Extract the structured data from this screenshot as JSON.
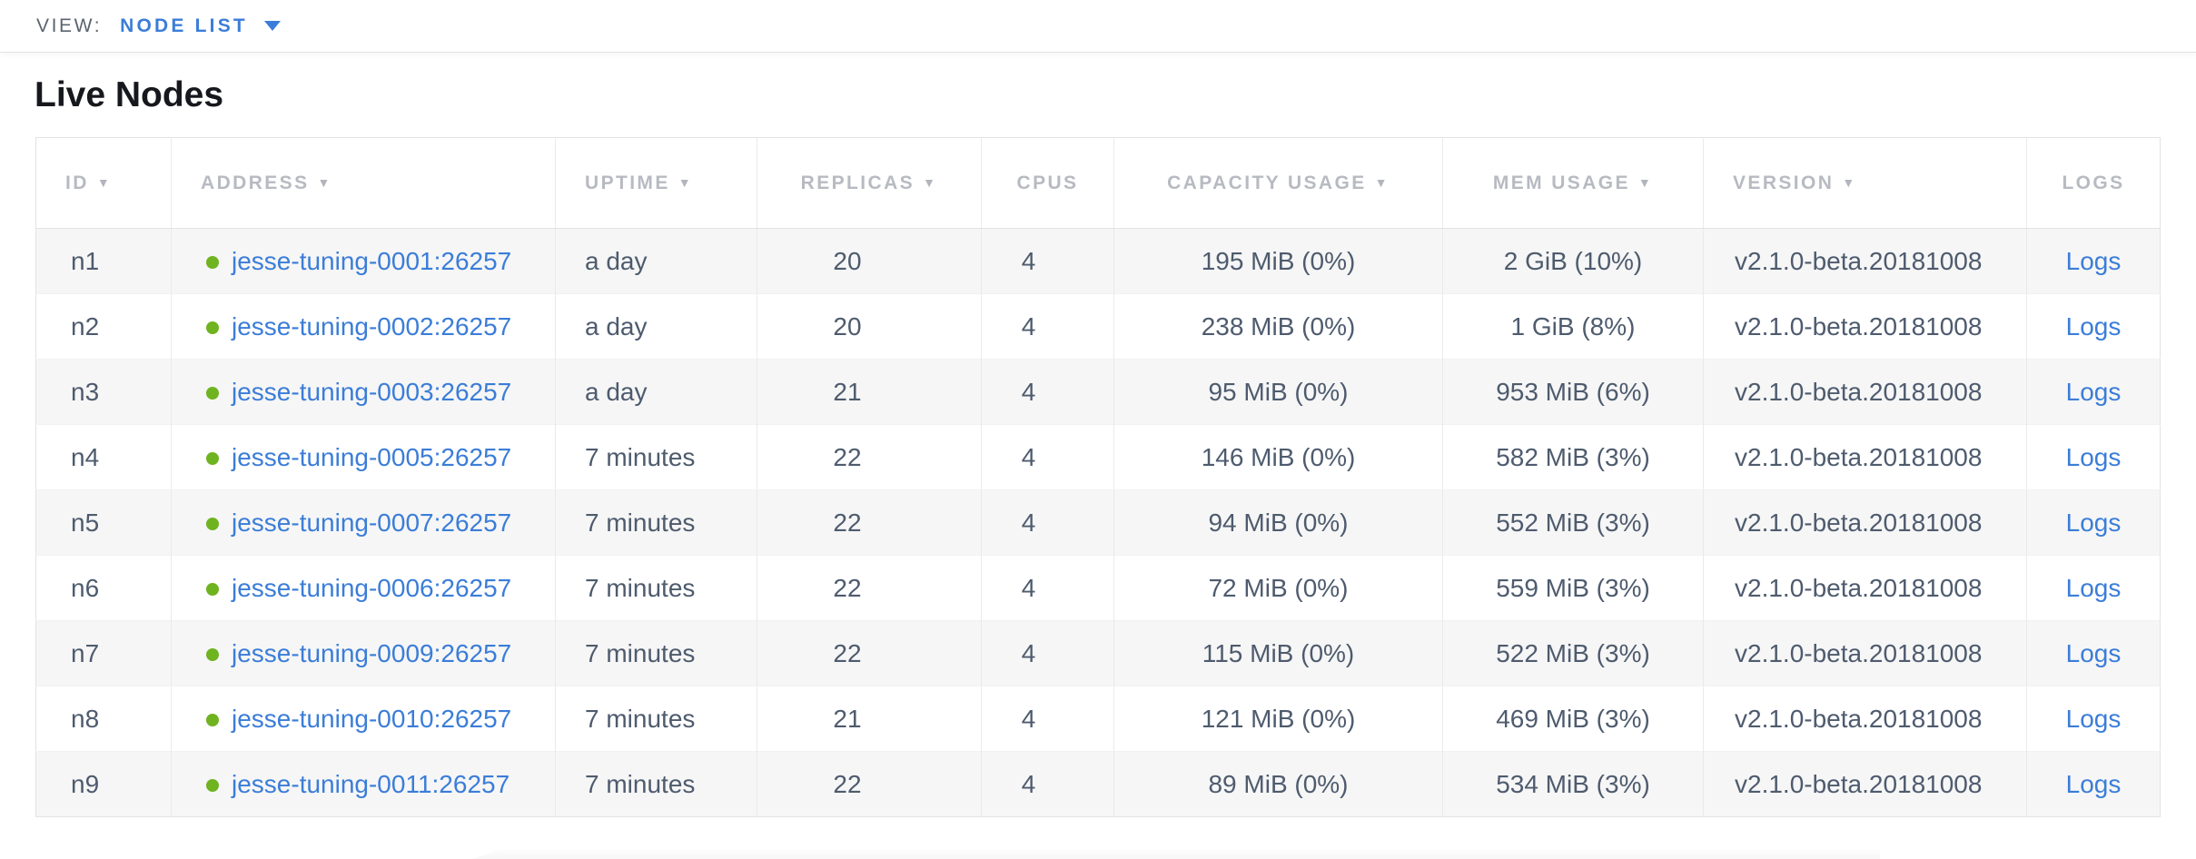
{
  "view_bar": {
    "label": "VIEW:",
    "selected": "NODE LIST"
  },
  "page": {
    "title": "Live Nodes"
  },
  "colors": {
    "accent": "#3b7dd8",
    "link": "#3b7dd8",
    "status-live": "#6fb320"
  },
  "table": {
    "sort_arrow": "▼",
    "columns": [
      {
        "key": "id",
        "label": "ID",
        "sortable": true,
        "align": "left"
      },
      {
        "key": "address",
        "label": "ADDRESS",
        "sortable": true,
        "align": "left"
      },
      {
        "key": "uptime",
        "label": "UPTIME",
        "sortable": true,
        "align": "left"
      },
      {
        "key": "replicas",
        "label": "REPLICAS",
        "sortable": true,
        "align": "center"
      },
      {
        "key": "cpus",
        "label": "CPUS",
        "sortable": false,
        "align": "center"
      },
      {
        "key": "capacity",
        "label": "CAPACITY USAGE",
        "sortable": true,
        "align": "center"
      },
      {
        "key": "mem",
        "label": "MEM USAGE",
        "sortable": true,
        "align": "center"
      },
      {
        "key": "version",
        "label": "VERSION",
        "sortable": true,
        "align": "left"
      },
      {
        "key": "logs",
        "label": "LOGS",
        "sortable": false,
        "align": "center"
      }
    ],
    "rows": [
      {
        "id": "n1",
        "status": "live",
        "address": "jesse-tuning-0001:26257",
        "uptime": "a day",
        "replicas": "20",
        "cpus": "4",
        "capacity": "195 MiB (0%)",
        "mem": "2 GiB (10%)",
        "version": "v2.1.0-beta.20181008",
        "logs": "Logs"
      },
      {
        "id": "n2",
        "status": "live",
        "address": "jesse-tuning-0002:26257",
        "uptime": "a day",
        "replicas": "20",
        "cpus": "4",
        "capacity": "238 MiB (0%)",
        "mem": "1 GiB (8%)",
        "version": "v2.1.0-beta.20181008",
        "logs": "Logs"
      },
      {
        "id": "n3",
        "status": "live",
        "address": "jesse-tuning-0003:26257",
        "uptime": "a day",
        "replicas": "21",
        "cpus": "4",
        "capacity": "95 MiB (0%)",
        "mem": "953 MiB (6%)",
        "version": "v2.1.0-beta.20181008",
        "logs": "Logs"
      },
      {
        "id": "n4",
        "status": "live",
        "address": "jesse-tuning-0005:26257",
        "uptime": "7 minutes",
        "replicas": "22",
        "cpus": "4",
        "capacity": "146 MiB (0%)",
        "mem": "582 MiB (3%)",
        "version": "v2.1.0-beta.20181008",
        "logs": "Logs"
      },
      {
        "id": "n5",
        "status": "live",
        "address": "jesse-tuning-0007:26257",
        "uptime": "7 minutes",
        "replicas": "22",
        "cpus": "4",
        "capacity": "94 MiB (0%)",
        "mem": "552 MiB (3%)",
        "version": "v2.1.0-beta.20181008",
        "logs": "Logs"
      },
      {
        "id": "n6",
        "status": "live",
        "address": "jesse-tuning-0006:26257",
        "uptime": "7 minutes",
        "replicas": "22",
        "cpus": "4",
        "capacity": "72 MiB (0%)",
        "mem": "559 MiB (3%)",
        "version": "v2.1.0-beta.20181008",
        "logs": "Logs"
      },
      {
        "id": "n7",
        "status": "live",
        "address": "jesse-tuning-0009:26257",
        "uptime": "7 minutes",
        "replicas": "22",
        "cpus": "4",
        "capacity": "115 MiB (0%)",
        "mem": "522 MiB (3%)",
        "version": "v2.1.0-beta.20181008",
        "logs": "Logs"
      },
      {
        "id": "n8",
        "status": "live",
        "address": "jesse-tuning-0010:26257",
        "uptime": "7 minutes",
        "replicas": "21",
        "cpus": "4",
        "capacity": "121 MiB (0%)",
        "mem": "469 MiB (3%)",
        "version": "v2.1.0-beta.20181008",
        "logs": "Logs"
      },
      {
        "id": "n9",
        "status": "live",
        "address": "jesse-tuning-0011:26257",
        "uptime": "7 minutes",
        "replicas": "22",
        "cpus": "4",
        "capacity": "89 MiB (0%)",
        "mem": "534 MiB (3%)",
        "version": "v2.1.0-beta.20181008",
        "logs": "Logs"
      }
    ]
  }
}
